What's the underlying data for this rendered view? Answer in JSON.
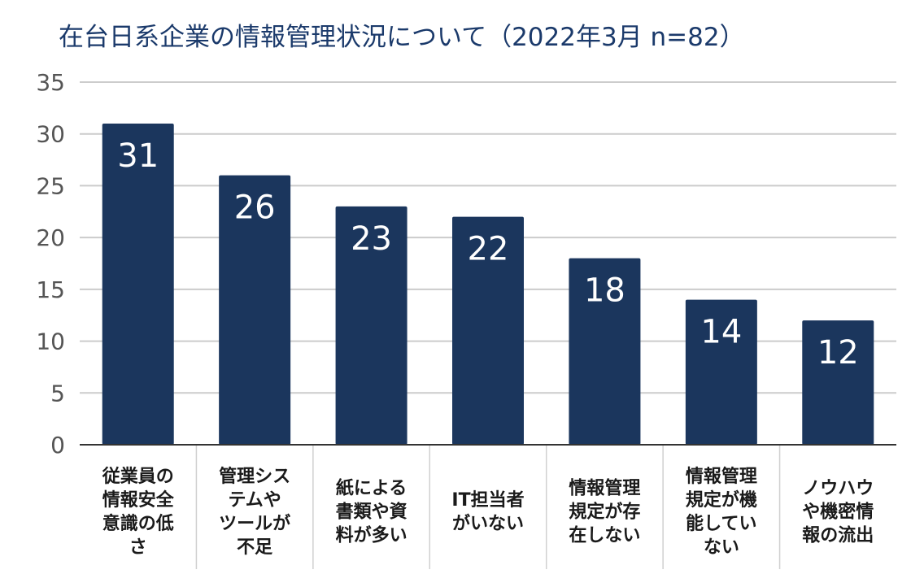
{
  "chart_data": {
    "type": "bar",
    "title": "在台日系企業の情報管理状況について（2022年3月 n=82）",
    "xlabel": "",
    "ylabel": "",
    "ylim": [
      0,
      35
    ],
    "yticks": [
      0,
      5,
      10,
      15,
      20,
      25,
      30,
      35
    ],
    "grid": true,
    "categories": [
      [
        "従業員の",
        "情報安全",
        "意識の低",
        "さ"
      ],
      [
        "管理シス",
        "テムや",
        "ツールが",
        "不足"
      ],
      [
        "紙による",
        "書類や資",
        "料が多い"
      ],
      [
        "IT担当者",
        "がいない"
      ],
      [
        "情報管理",
        "規定が存",
        "在しない"
      ],
      [
        "情報管理",
        "規定が機",
        "能してい",
        "ない"
      ],
      [
        "ノウハウ",
        "や機密情",
        "報の流出"
      ]
    ],
    "values": [
      31,
      26,
      23,
      22,
      18,
      14,
      12
    ],
    "colors": {
      "bar": "#1b365d",
      "grid": "#cccccc",
      "axis": "#333333",
      "title": "#1b3a6b"
    }
  }
}
